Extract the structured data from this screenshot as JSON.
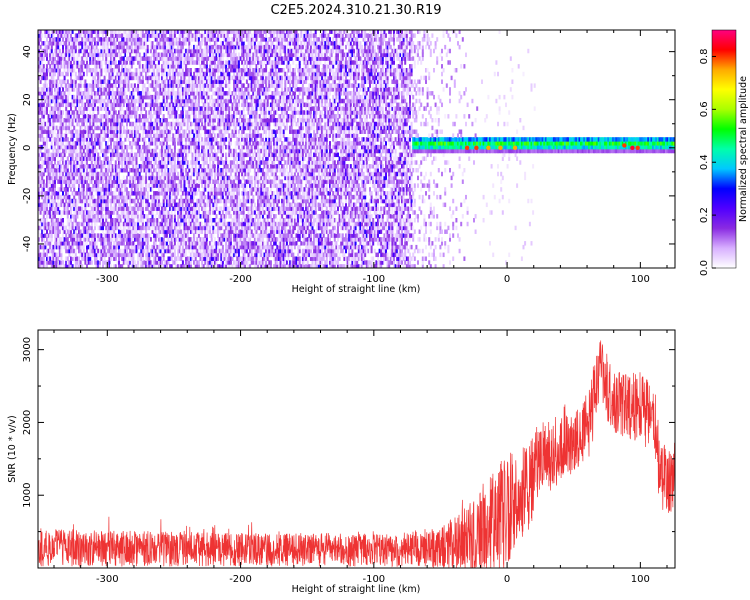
{
  "title": "C2E5.2024.310.21.30.R19",
  "chart_data": [
    {
      "type": "heatmap",
      "xlabel": "Height of straight line (km)",
      "ylabel": "Frequency (Hz)",
      "xlim": [
        -352,
        126
      ],
      "ylim": [
        -50,
        49
      ],
      "xticks": [
        -300,
        -200,
        -100,
        0,
        100
      ],
      "yticks": [
        -40,
        -20,
        0,
        20,
        40
      ],
      "colorbar": {
        "label": "Normalized spectral amplitude",
        "range": [
          0,
          0.9
        ],
        "ticks": [
          0.0,
          0.2,
          0.4,
          0.6,
          0.8
        ],
        "tick_labels": [
          "0.0",
          "0.2",
          "0.4",
          "0.6",
          "0.8"
        ],
        "colormap": [
          "#ffffff",
          "#d8b0ff",
          "#8a2be2",
          "#5000ff",
          "#0000ff",
          "#00c8ff",
          "#00ffaa",
          "#00ff00",
          "#aaff00",
          "#ffff00",
          "#ffaa00",
          "#ff0000",
          "#ff0080"
        ]
      },
      "features": {
        "noise_region_x": [
          -352,
          -72
        ],
        "noise_amplitude_range": [
          0.0,
          0.25
        ],
        "transition_region_x": [
          -72,
          -20
        ],
        "signal_band_center_hz": 1,
        "signal_band_halfwidth_hz": 3,
        "signal_band_x": [
          -72,
          126
        ],
        "signal_band_amplitude": 0.5,
        "peak_points": [
          {
            "x": -30,
            "y": 0,
            "value": 0.8
          },
          {
            "x": -23,
            "y": 0,
            "value": 0.8
          },
          {
            "x": -14,
            "y": 0,
            "value": 0.75
          },
          {
            "x": -5,
            "y": 0,
            "value": 0.75
          },
          {
            "x": 6,
            "y": 0,
            "value": 0.75
          },
          {
            "x": 88,
            "y": 1,
            "value": 0.8
          },
          {
            "x": 94,
            "y": 0,
            "value": 0.85
          },
          {
            "x": 98,
            "y": 0,
            "value": 0.8
          }
        ]
      }
    },
    {
      "type": "line",
      "xlabel": "Height of straight line (km)",
      "ylabel": "SNR (10 * v/v)",
      "xlim": [
        -352,
        126
      ],
      "ylim": [
        0,
        3270
      ],
      "xticks": [
        -300,
        -200,
        -100,
        0,
        100
      ],
      "yticks": [
        1000,
        2000,
        3000
      ],
      "color": "#ee3333",
      "series": [
        {
          "envelope_x": [
            -352,
            -300,
            -250,
            -200,
            -150,
            -100,
            -60,
            -40,
            -20,
            0,
            10,
            20,
            30,
            40,
            50,
            60,
            65,
            70,
            75,
            80,
            90,
            100,
            110,
            115,
            120,
            126
          ],
          "envelope_mean": [
            280,
            270,
            260,
            250,
            250,
            250,
            260,
            330,
            520,
            800,
            950,
            1300,
            1500,
            1650,
            1700,
            1900,
            2300,
            2800,
            2500,
            2250,
            2250,
            2200,
            2050,
            1300,
            1200,
            1100
          ],
          "envelope_spread": [
            260,
            250,
            240,
            230,
            230,
            230,
            250,
            350,
            600,
            800,
            700,
            650,
            550,
            450,
            400,
            500,
            550,
            450,
            500,
            450,
            450,
            500,
            450,
            500,
            450,
            500
          ]
        }
      ]
    }
  ]
}
